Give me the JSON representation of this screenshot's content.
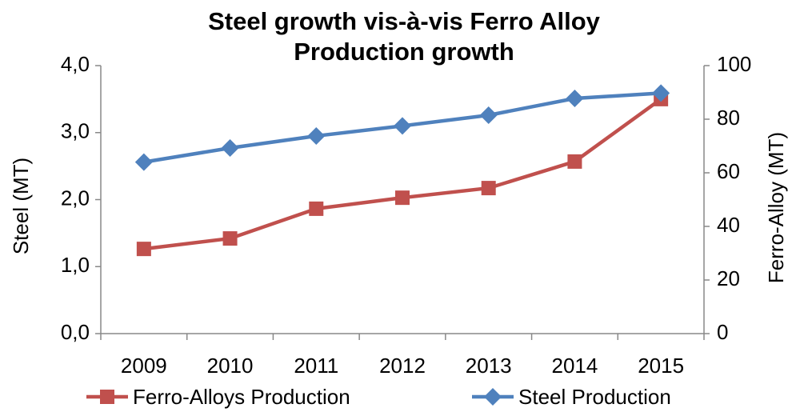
{
  "chart_data": {
    "type": "line",
    "title": "Steel growth vis-à-vis Ferro Alloy Production growth",
    "y_label": "Steel (MT)",
    "y2_label": "Ferro-Alloy (MT)",
    "categories": [
      "2009",
      "2010",
      "2011",
      "2012",
      "2013",
      "2014",
      "2015"
    ],
    "series": [
      {
        "name": "Ferro-Alloys Production",
        "color": "#c0504d",
        "marker": "square",
        "axis": "y2",
        "values": [
          31.6,
          35.5,
          46.6,
          50.7,
          54.3,
          64.2,
          87.5
        ]
      },
      {
        "name": "Steel Production",
        "color": "#4f81bd",
        "marker": "diamond",
        "values": [
          2.56,
          2.77,
          2.95,
          3.1,
          3.26,
          3.51,
          3.59
        ]
      }
    ],
    "ylim": [
      0,
      4
    ],
    "yticks": [
      {
        "value": 0,
        "label": "0,0"
      },
      {
        "value": 1,
        "label": "1,0"
      },
      {
        "value": 2,
        "label": "2,0"
      },
      {
        "value": 3,
        "label": "3,0"
      },
      {
        "value": 4,
        "label": "4,0"
      }
    ],
    "y2lim": [
      0,
      100
    ],
    "y2ticks": [
      0,
      20,
      40,
      60,
      80,
      100
    ],
    "grid": false,
    "legend": "bottom"
  }
}
